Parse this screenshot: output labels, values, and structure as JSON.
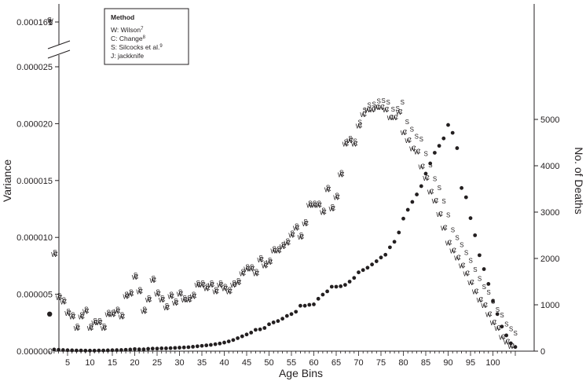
{
  "chart_data": {
    "type": "scatter",
    "xlabel": "Age Bins",
    "ylabel_left": "Variance",
    "ylabel_right": "No. of Deaths",
    "x_ticks": [
      "5",
      "10",
      "15",
      "20",
      "25",
      "30",
      "35",
      "40",
      "45",
      "50",
      "55",
      "60",
      "65",
      "70",
      "75",
      "80",
      "85",
      "90",
      "95",
      "100"
    ],
    "y_left_ticks": [
      "0.000000",
      "0.000005",
      "0.000010",
      "0.000015",
      "0.000020",
      "0.000025"
    ],
    "y_left_break_tick": "0.000161",
    "y_right_ticks": [
      "0",
      "1000",
      "2000",
      "3000",
      "4000",
      "5000"
    ],
    "xlim": [
      0,
      105
    ],
    "ylim_left": [
      0,
      2.5e-05
    ],
    "ylim_right": [
      0,
      5000
    ],
    "legend": {
      "title": "Method",
      "items": [
        {
          "letter": "W",
          "label": "W: Wilson",
          "sup": "7"
        },
        {
          "letter": "C",
          "label": "C: Change",
          "sup": "8"
        },
        {
          "letter": "S",
          "label": "S: Silcocks et al.",
          "sup": "9"
        },
        {
          "letter": "J",
          "label": "J: jackknife",
          "sup": ""
        }
      ]
    },
    "break_point": {
      "x": 1,
      "value": 0.000161,
      "letters": [
        "S",
        "W",
        "C"
      ]
    },
    "variance_points": [
      [
        2,
        8.5e-06
      ],
      [
        3,
        4.7e-06
      ],
      [
        4,
        4.3e-06
      ],
      [
        5,
        3.3e-06
      ],
      [
        6,
        3e-06
      ],
      [
        7,
        2e-06
      ],
      [
        8,
        3e-06
      ],
      [
        9,
        3.5e-06
      ],
      [
        10,
        2e-06
      ],
      [
        11,
        2.5e-06
      ],
      [
        12,
        2.5e-06
      ],
      [
        13,
        2e-06
      ],
      [
        14,
        3.2e-06
      ],
      [
        15,
        3.2e-06
      ],
      [
        16,
        3.5e-06
      ],
      [
        17,
        3e-06
      ],
      [
        18,
        4.8e-06
      ],
      [
        19,
        5e-06
      ],
      [
        20,
        6.5e-06
      ],
      [
        21,
        5.2e-06
      ],
      [
        22,
        3.5e-06
      ],
      [
        23,
        4.5e-06
      ],
      [
        24,
        6.2e-06
      ],
      [
        25,
        5e-06
      ],
      [
        26,
        4.5e-06
      ],
      [
        27,
        3.8e-06
      ],
      [
        28,
        4.8e-06
      ],
      [
        29,
        4.2e-06
      ],
      [
        30,
        5e-06
      ],
      [
        31,
        4.5e-06
      ],
      [
        32,
        4.5e-06
      ],
      [
        33,
        4.8e-06
      ],
      [
        34,
        5.8e-06
      ],
      [
        35,
        5.8e-06
      ],
      [
        36,
        5.5e-06
      ],
      [
        37,
        5.8e-06
      ],
      [
        38,
        5.2e-06
      ],
      [
        39,
        5.8e-06
      ],
      [
        40,
        5.5e-06
      ],
      [
        41,
        5.2e-06
      ],
      [
        42,
        5.8e-06
      ],
      [
        43,
        6e-06
      ],
      [
        44,
        6.8e-06
      ],
      [
        45,
        7.2e-06
      ],
      [
        46,
        7.2e-06
      ],
      [
        47,
        6.8e-06
      ],
      [
        48,
        8e-06
      ],
      [
        49,
        7.5e-06
      ],
      [
        50,
        7.8e-06
      ],
      [
        51,
        8.8e-06
      ],
      [
        52,
        8.8e-06
      ],
      [
        53,
        9.2e-06
      ],
      [
        54,
        9.5e-06
      ],
      [
        55,
        1.02e-05
      ],
      [
        56,
        1.08e-05
      ],
      [
        57,
        1e-05
      ],
      [
        58,
        1.12e-05
      ],
      [
        59,
        1.28e-05
      ],
      [
        60,
        1.28e-05
      ],
      [
        61,
        1.28e-05
      ],
      [
        62,
        1.22e-05
      ],
      [
        63,
        1.42e-05
      ],
      [
        64,
        1.25e-05
      ],
      [
        65,
        1.35e-05
      ],
      [
        66,
        1.55e-05
      ],
      [
        67,
        1.82e-05
      ],
      [
        68,
        1.85e-05
      ],
      [
        69,
        1.82e-05
      ],
      [
        70,
        1.98e-05
      ],
      [
        71,
        2.08e-05
      ],
      [
        72,
        2.12e-05
      ],
      [
        73,
        2.12e-05
      ],
      [
        74,
        2.14e-05
      ],
      [
        75,
        2.14e-05
      ],
      [
        76,
        2.12e-05
      ],
      [
        77,
        2.05e-05
      ],
      [
        78,
        2.05e-05
      ],
      [
        79,
        2.1e-05
      ],
      [
        80,
        1.92e-05
      ],
      [
        81,
        1.85e-05
      ],
      [
        82,
        1.78e-05
      ],
      [
        83,
        1.75e-05
      ],
      [
        84,
        1.62e-05
      ],
      [
        85,
        1.52e-05
      ],
      [
        86,
        1.4e-05
      ],
      [
        87,
        1.32e-05
      ],
      [
        88,
        1.2e-05
      ],
      [
        89,
        1.08e-05
      ],
      [
        90,
        9.5e-06
      ],
      [
        91,
        8.8e-06
      ],
      [
        92,
        8.2e-06
      ],
      [
        93,
        7.5e-06
      ],
      [
        94,
        6.8e-06
      ],
      [
        95,
        6e-06
      ],
      [
        96,
        5.2e-06
      ],
      [
        97,
        4.5e-06
      ],
      [
        98,
        4e-06
      ],
      [
        99,
        3.2e-06
      ],
      [
        100,
        2.5e-06
      ],
      [
        101,
        2e-06
      ],
      [
        102,
        1.2e-06
      ],
      [
        103,
        8e-07
      ],
      [
        104,
        4e-07
      ]
    ],
    "deaths_points": [
      [
        1,
        800
      ],
      [
        2,
        35
      ],
      [
        3,
        30
      ],
      [
        4,
        25
      ],
      [
        5,
        20
      ],
      [
        6,
        18
      ],
      [
        7,
        15
      ],
      [
        8,
        15
      ],
      [
        9,
        12
      ],
      [
        10,
        12
      ],
      [
        11,
        12
      ],
      [
        12,
        15
      ],
      [
        13,
        15
      ],
      [
        14,
        18
      ],
      [
        15,
        20
      ],
      [
        16,
        22
      ],
      [
        17,
        25
      ],
      [
        18,
        30
      ],
      [
        19,
        35
      ],
      [
        20,
        45
      ],
      [
        21,
        40
      ],
      [
        22,
        40
      ],
      [
        23,
        50
      ],
      [
        24,
        55
      ],
      [
        25,
        55
      ],
      [
        26,
        60
      ],
      [
        27,
        60
      ],
      [
        28,
        65
      ],
      [
        29,
        70
      ],
      [
        30,
        75
      ],
      [
        31,
        80
      ],
      [
        32,
        85
      ],
      [
        33,
        95
      ],
      [
        34,
        105
      ],
      [
        35,
        115
      ],
      [
        36,
        125
      ],
      [
        37,
        135
      ],
      [
        38,
        150
      ],
      [
        39,
        165
      ],
      [
        40,
        185
      ],
      [
        41,
        210
      ],
      [
        42,
        240
      ],
      [
        43,
        280
      ],
      [
        44,
        320
      ],
      [
        45,
        360
      ],
      [
        46,
        400
      ],
      [
        47,
        460
      ],
      [
        48,
        470
      ],
      [
        49,
        500
      ],
      [
        50,
        580
      ],
      [
        51,
        620
      ],
      [
        52,
        650
      ],
      [
        53,
        700
      ],
      [
        54,
        760
      ],
      [
        55,
        800
      ],
      [
        56,
        850
      ],
      [
        57,
        980
      ],
      [
        58,
        980
      ],
      [
        59,
        1000
      ],
      [
        60,
        1010
      ],
      [
        61,
        1130
      ],
      [
        62,
        1220
      ],
      [
        63,
        1290
      ],
      [
        64,
        1390
      ],
      [
        65,
        1390
      ],
      [
        66,
        1400
      ],
      [
        67,
        1430
      ],
      [
        68,
        1500
      ],
      [
        69,
        1580
      ],
      [
        70,
        1700
      ],
      [
        71,
        1750
      ],
      [
        72,
        1800
      ],
      [
        73,
        1870
      ],
      [
        74,
        1940
      ],
      [
        75,
        2020
      ],
      [
        76,
        2080
      ],
      [
        77,
        2240
      ],
      [
        78,
        2360
      ],
      [
        79,
        2560
      ],
      [
        80,
        2860
      ],
      [
        81,
        3050
      ],
      [
        82,
        3220
      ],
      [
        83,
        3380
      ],
      [
        84,
        3560
      ],
      [
        85,
        3830
      ],
      [
        86,
        4050
      ],
      [
        87,
        4280
      ],
      [
        88,
        4430
      ],
      [
        89,
        4590
      ],
      [
        90,
        4880
      ],
      [
        91,
        4710
      ],
      [
        92,
        4380
      ],
      [
        93,
        3520
      ],
      [
        94,
        3320
      ],
      [
        95,
        2870
      ],
      [
        96,
        2500
      ],
      [
        97,
        2070
      ],
      [
        98,
        1770
      ],
      [
        99,
        1450
      ],
      [
        100,
        1080
      ],
      [
        101,
        800
      ],
      [
        102,
        530
      ],
      [
        103,
        340
      ],
      [
        104,
        170
      ],
      [
        105,
        90
      ]
    ]
  }
}
